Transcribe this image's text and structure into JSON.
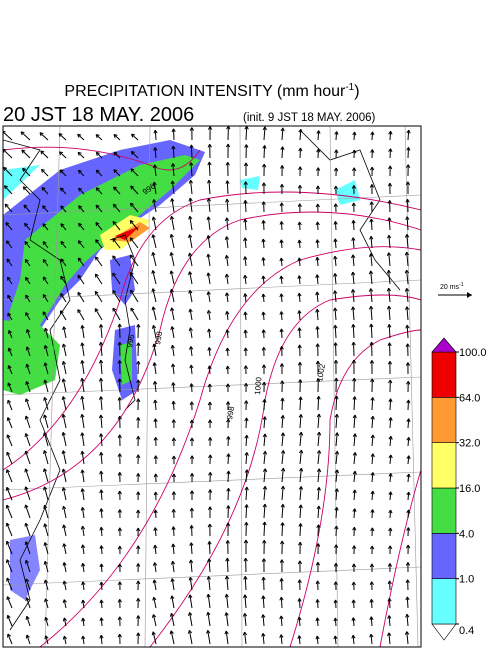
{
  "title": {
    "main": "PRECIPITATION INTENSITY (mm hour",
    "exponent": "-1",
    "close": ")"
  },
  "subtitle": {
    "valid_time": "20 JST 18 MAY. 2006",
    "init_time": "(init. 9 JST 18 MAY. 2006)"
  },
  "wind_reference": {
    "label": "20 ms",
    "exponent": "-1"
  },
  "isobar_labels": [
    "996",
    "998",
    "1000",
    "1002",
    "998",
    "996"
  ],
  "colorbar": {
    "levels": [
      0.4,
      {
        "value": 1,
        "label": "1.0"
      },
      {
        "value": 4,
        "label": "4.0"
      },
      {
        "value": 16,
        "label": "16.0"
      },
      {
        "value": 32,
        "label": "32.0"
      },
      {
        "value": 64,
        "label": "64.0"
      },
      {
        "value": 100,
        "label": "100.0"
      }
    ],
    "colors": [
      "#ffffff",
      "#66ffff",
      "#6666ff",
      "#44dd44",
      "#ffff66",
      "#ff9933",
      "#ee0000",
      "#aa00cc"
    ]
  }
}
